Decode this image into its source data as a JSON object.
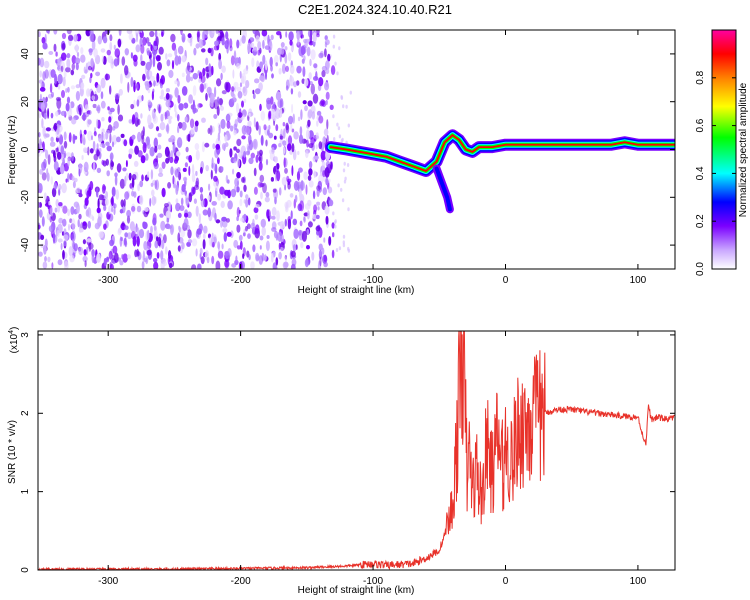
{
  "title": "C2E1.2024.324.10.40.R21",
  "chart_data": [
    {
      "type": "heatmap",
      "title": "C2E1.2024.324.10.40.R21",
      "xlabel": "Height of straight line (km)",
      "ylabel": "Frequency (Hz)",
      "xlim": [
        -353,
        128
      ],
      "ylim": [
        -50,
        50
      ],
      "xticks": [
        -300,
        -200,
        -100,
        0,
        100
      ],
      "yticks": [
        -40,
        -20,
        0,
        20,
        40
      ],
      "colorbar": {
        "label": "Normalized spectral amplitude",
        "range": [
          0,
          1
        ],
        "ticks": [
          "0.0",
          "0.2",
          "0.4",
          "0.6",
          "0.8"
        ],
        "colors": [
          "#ffffff",
          "#7a00ff",
          "#0000ff",
          "#00ffff",
          "#00ff00",
          "#ffff00",
          "#ff8000",
          "#ff0000",
          "#ff00a0"
        ]
      },
      "noise_region_x": [
        -353,
        -130
      ],
      "ridge": {
        "x": [
          -132,
          -120,
          -110,
          -100,
          -90,
          -80,
          -70,
          -60,
          -52,
          -46,
          -40,
          -35,
          -30,
          -25,
          -20,
          -10,
          0,
          20,
          40,
          60,
          80,
          90,
          100,
          110,
          128
        ],
        "y": [
          1,
          0,
          -1,
          -2,
          -3,
          -5,
          -7,
          -9,
          -5,
          3,
          6,
          4,
          0,
          -1,
          1,
          1,
          2,
          2,
          2,
          2,
          2,
          3,
          2,
          2,
          2
        ]
      },
      "ridge_tail": {
        "x": [
          -52,
          -48,
          -44,
          -42
        ],
        "y": [
          -8,
          -14,
          -20,
          -25
        ]
      }
    },
    {
      "type": "line",
      "xlabel": "Height of straight line (km)",
      "ylabel": "SNR (10 * v/v)",
      "y_multiplier": "(x10",
      "y_multiplier_exp": "4",
      "y_multiplier_close": ")",
      "xlim": [
        -353,
        128
      ],
      "ylim": [
        0,
        3.05
      ],
      "xticks": [
        -300,
        -200,
        -100,
        0,
        100
      ],
      "yticks": [
        0,
        1,
        2,
        3
      ],
      "color": "#e8322a",
      "series": [
        {
          "x": [
            -353,
            -300,
            -250,
            -200,
            -150,
            -120,
            -100,
            -90,
            -80,
            -70,
            -60,
            -50,
            -45,
            -40,
            -36,
            -33,
            -31,
            -29,
            -27,
            -25,
            -22,
            -18,
            -14,
            -10,
            -6,
            -2,
            0,
            5,
            10,
            15,
            20,
            25,
            30,
            40,
            50,
            60,
            70,
            80,
            90,
            100,
            104,
            106,
            108,
            110,
            115,
            120,
            128
          ],
          "y": [
            0.01,
            0.01,
            0.01,
            0.02,
            0.03,
            0.05,
            0.08,
            0.06,
            0.07,
            0.08,
            0.15,
            0.25,
            0.5,
            0.8,
            1.8,
            3.0,
            2.3,
            1.2,
            1.5,
            1.0,
            1.3,
            0.9,
            1.6,
            1.2,
            1.7,
            1.3,
            1.55,
            1.4,
            1.8,
            1.85,
            1.9,
            1.95,
            2.0,
            2.05,
            2.05,
            2.02,
            2.0,
            1.98,
            1.96,
            1.95,
            1.7,
            1.6,
            2.1,
            1.92,
            1.95,
            1.93,
            1.94
          ]
        }
      ]
    }
  ]
}
